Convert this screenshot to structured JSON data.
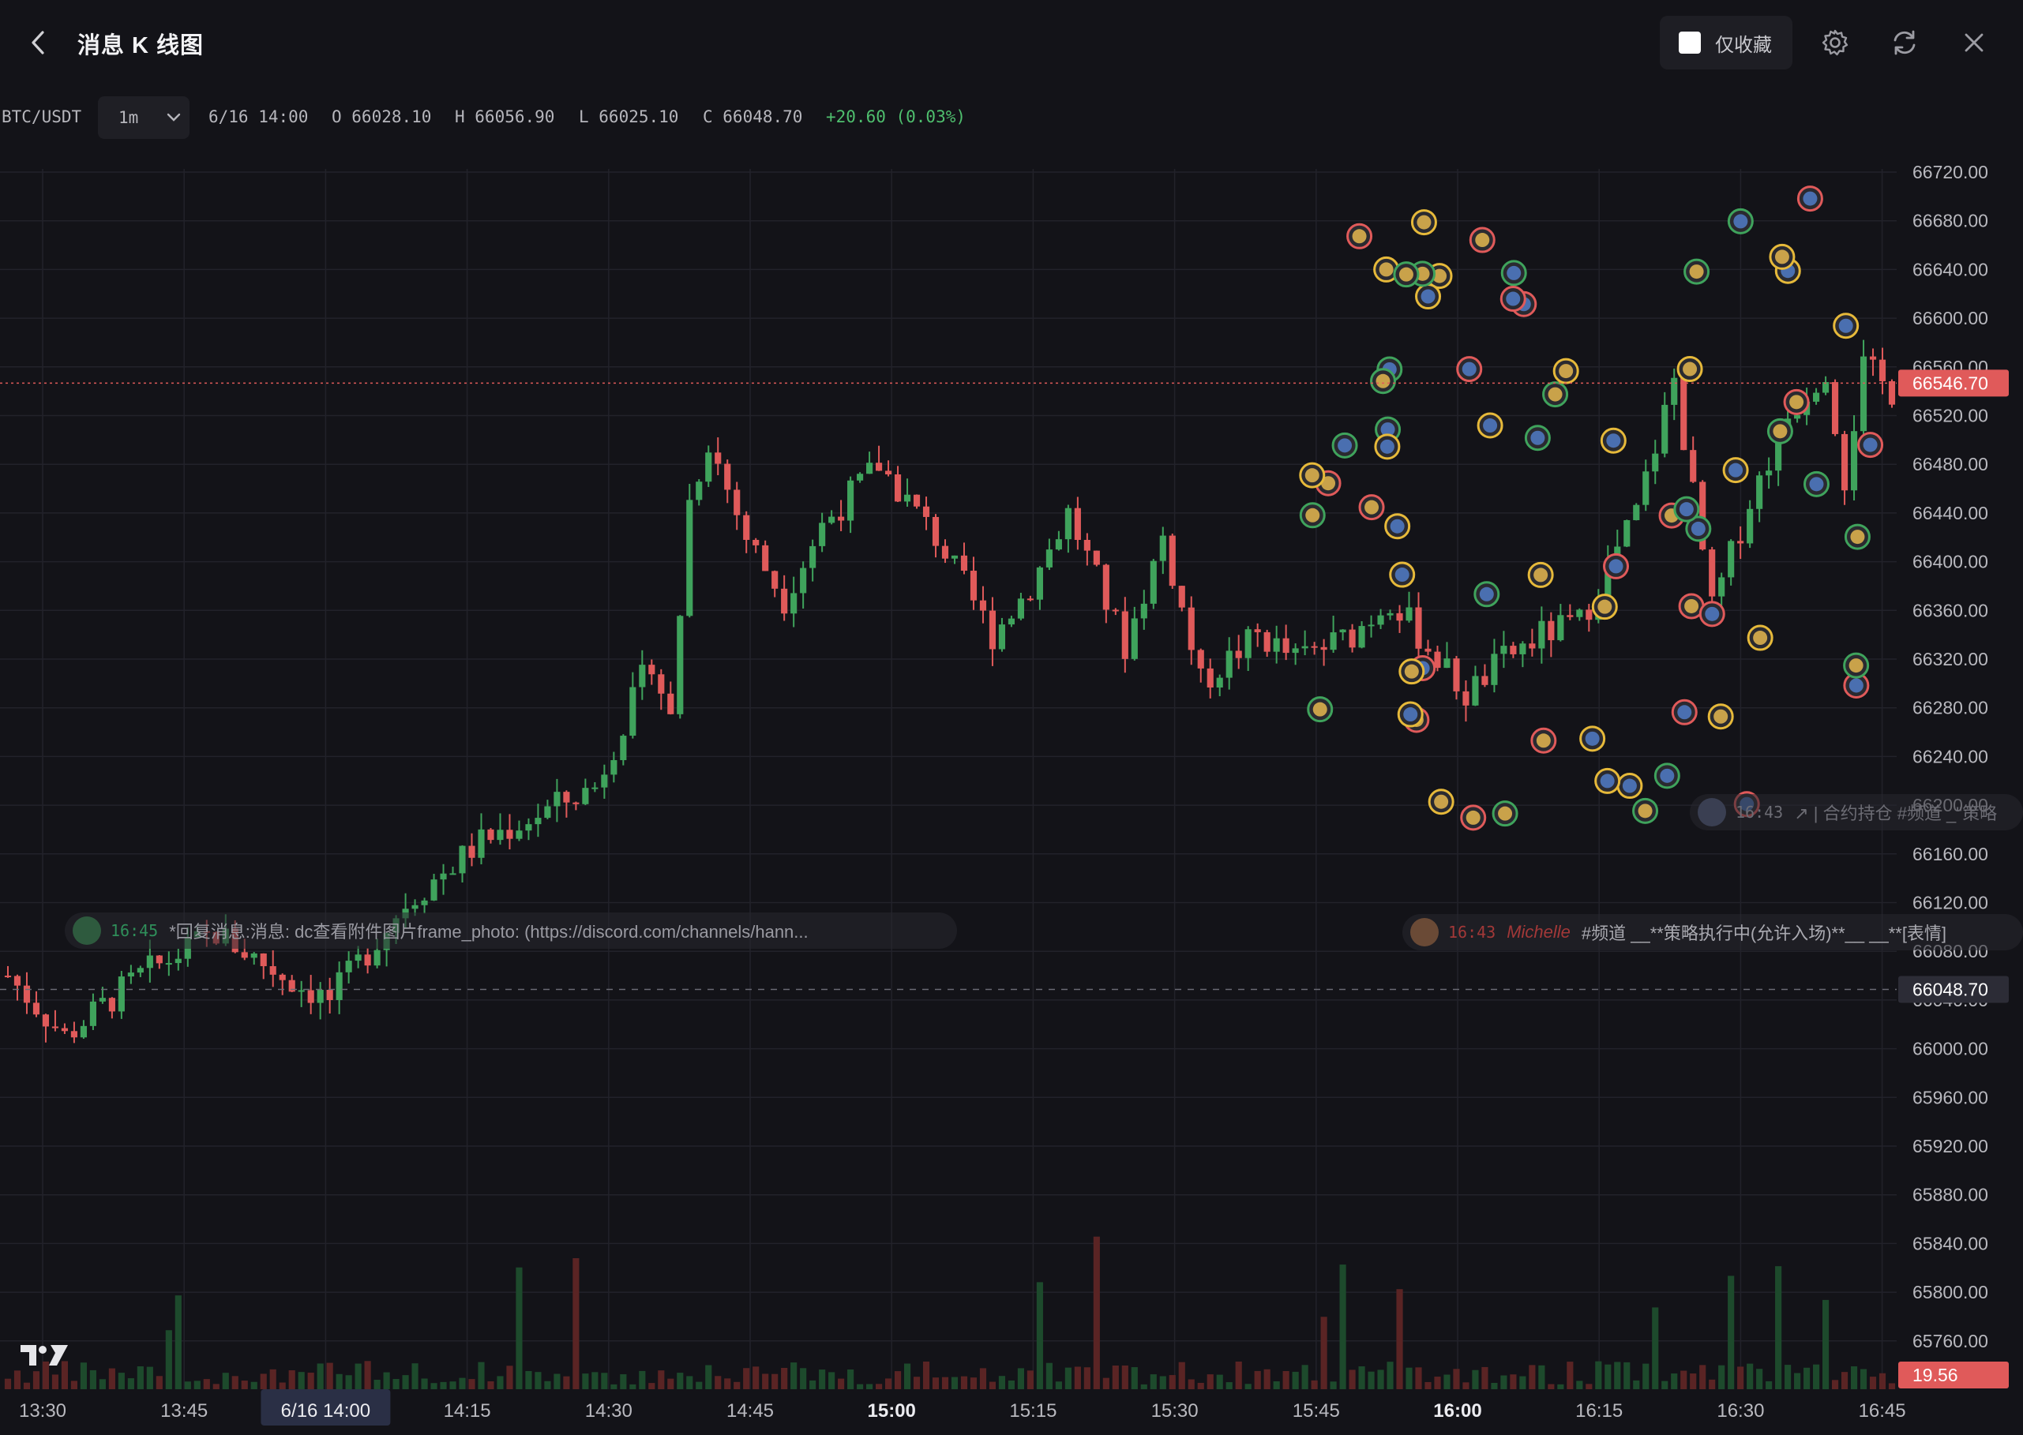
{
  "header": {
    "title": "消息 K 线图",
    "fav_label": "仅收藏"
  },
  "info": {
    "symbol": "BTC/USDT",
    "interval": "1m",
    "date": "6/16 14:00",
    "open": "O 66028.10",
    "high": "H 66056.90",
    "low": "L 66025.10",
    "close": "C 66048.70",
    "change": "+20.60 (0.03%)"
  },
  "messages": [
    {
      "time": "16:45",
      "text": "*回复消息:消息: dc查看附件图片frame_photo: (https://discord.com/channels/hann..."
    },
    {
      "time": "16:43",
      "user": "Michelle",
      "text": "#频道 __**策略执行中(允许入场)**__ __**[表情]"
    },
    {
      "time": "16:43",
      "text": "↗ | 合约持仓 #频道 _\"策略"
    }
  ],
  "colors": {
    "up": "#3fa35c",
    "down": "#e05a5a",
    "accent": "#e05a5a"
  },
  "chart_data": {
    "type": "candlestick",
    "y_ticks": [
      "66720.00",
      "66680.00",
      "66640.00",
      "66600.00",
      "66560.00",
      "66520.00",
      "66480.00",
      "66440.00",
      "66400.00",
      "66360.00",
      "66320.00",
      "66280.00",
      "66240.00",
      "66200.00",
      "66160.00",
      "66120.00",
      "66080.00",
      "66040.00",
      "66000.00",
      "65960.00",
      "65920.00",
      "65880.00",
      "65840.00",
      "65800.00",
      "65760.00"
    ],
    "x_ticks": [
      "13:30",
      "13:45",
      "6/16 14:00",
      "14:15",
      "14:30",
      "14:45",
      "15:00",
      "15:15",
      "15:30",
      "15:45",
      "16:00",
      "16:15",
      "16:30",
      "16:45"
    ],
    "ylim": [
      65720,
      66736
    ],
    "price_labels": {
      "high_line": "66546.70",
      "last": "66048.70",
      "volume": "19.56"
    },
    "price_anchors": [
      {
        "t": 0,
        "p": 66060
      },
      {
        "t": 6,
        "p": 66010
      },
      {
        "t": 14,
        "p": 66060
      },
      {
        "t": 22,
        "p": 66095
      },
      {
        "t": 30,
        "p": 66055
      },
      {
        "t": 34,
        "p": 66040
      },
      {
        "t": 42,
        "p": 66120
      },
      {
        "t": 50,
        "p": 66170
      },
      {
        "t": 58,
        "p": 66200
      },
      {
        "t": 62,
        "p": 66215
      },
      {
        "t": 68,
        "p": 66320
      },
      {
        "t": 70,
        "p": 66270
      },
      {
        "t": 72,
        "p": 66450
      },
      {
        "t": 74,
        "p": 66500
      },
      {
        "t": 78,
        "p": 66420
      },
      {
        "t": 82,
        "p": 66370
      },
      {
        "t": 86,
        "p": 66430
      },
      {
        "t": 92,
        "p": 66480
      },
      {
        "t": 98,
        "p": 66420
      },
      {
        "t": 104,
        "p": 66340
      },
      {
        "t": 108,
        "p": 66380
      },
      {
        "t": 112,
        "p": 66440
      },
      {
        "t": 118,
        "p": 66330
      },
      {
        "t": 122,
        "p": 66420
      },
      {
        "t": 126,
        "p": 66300
      },
      {
        "t": 132,
        "p": 66340
      },
      {
        "t": 136,
        "p": 66320
      },
      {
        "t": 142,
        "p": 66340
      },
      {
        "t": 146,
        "p": 66370
      },
      {
        "t": 150,
        "p": 66330
      },
      {
        "t": 154,
        "p": 66290
      },
      {
        "t": 158,
        "p": 66320
      },
      {
        "t": 162,
        "p": 66340
      },
      {
        "t": 166,
        "p": 66350
      },
      {
        "t": 172,
        "p": 66440
      },
      {
        "t": 176,
        "p": 66550
      },
      {
        "t": 180,
        "p": 66360
      },
      {
        "t": 184,
        "p": 66450
      },
      {
        "t": 188,
        "p": 66520
      },
      {
        "t": 192,
        "p": 66560
      },
      {
        "t": 194,
        "p": 66470
      },
      {
        "t": 196,
        "p": 66560
      },
      {
        "t": 199,
        "p": 66540
      }
    ]
  }
}
